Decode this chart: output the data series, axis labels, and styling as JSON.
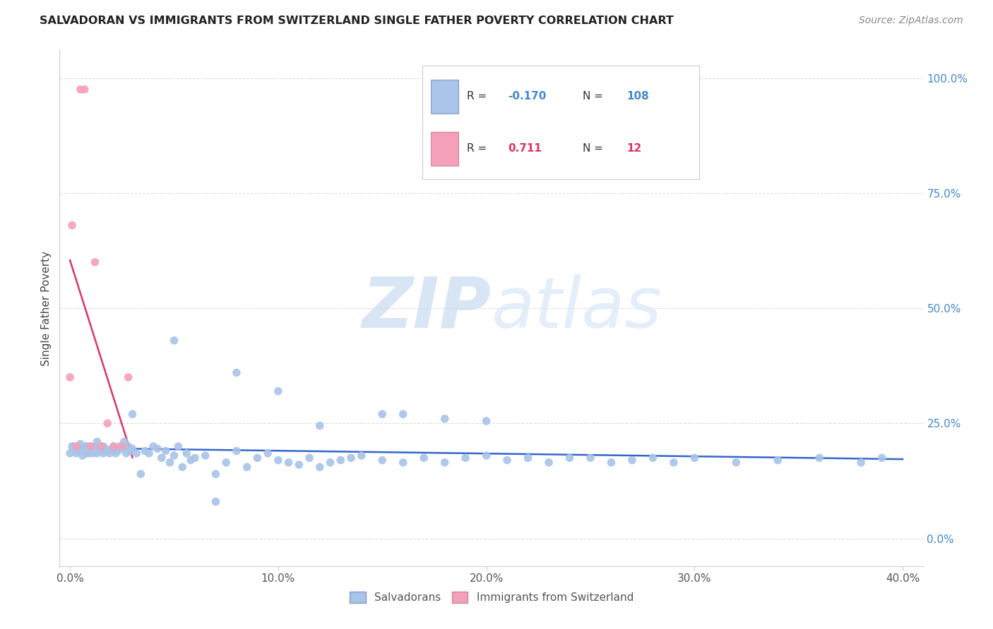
{
  "title": "SALVADORAN VS IMMIGRANTS FROM SWITZERLAND SINGLE FATHER POVERTY CORRELATION CHART",
  "source": "Source: ZipAtlas.com",
  "ylabel": "Single Father Poverty",
  "xlim": [
    -0.005,
    0.41
  ],
  "ylim": [
    -0.06,
    1.06
  ],
  "blue_R": -0.17,
  "blue_N": 108,
  "pink_R": 0.711,
  "pink_N": 12,
  "blue_color": "#a8c4e8",
  "pink_color": "#f4a0b8",
  "blue_line_color": "#3366cc",
  "pink_line_color": "#dd3366",
  "legend_blue_label": "Salvadorans",
  "legend_pink_label": "Immigrants from Switzerland",
  "blue_scatter_x": [
    0.0,
    0.001,
    0.002,
    0.002,
    0.003,
    0.003,
    0.004,
    0.004,
    0.005,
    0.005,
    0.006,
    0.006,
    0.007,
    0.007,
    0.008,
    0.008,
    0.009,
    0.009,
    0.01,
    0.01,
    0.011,
    0.011,
    0.012,
    0.012,
    0.013,
    0.013,
    0.014,
    0.014,
    0.015,
    0.015,
    0.016,
    0.016,
    0.017,
    0.018,
    0.019,
    0.02,
    0.021,
    0.022,
    0.023,
    0.024,
    0.025,
    0.026,
    0.027,
    0.028,
    0.029,
    0.03,
    0.032,
    0.034,
    0.036,
    0.038,
    0.04,
    0.042,
    0.044,
    0.046,
    0.048,
    0.05,
    0.052,
    0.054,
    0.056,
    0.058,
    0.06,
    0.065,
    0.07,
    0.075,
    0.08,
    0.085,
    0.09,
    0.095,
    0.1,
    0.105,
    0.11,
    0.115,
    0.12,
    0.125,
    0.13,
    0.135,
    0.14,
    0.15,
    0.16,
    0.17,
    0.18,
    0.19,
    0.2,
    0.21,
    0.22,
    0.23,
    0.24,
    0.25,
    0.26,
    0.27,
    0.28,
    0.29,
    0.3,
    0.32,
    0.34,
    0.36,
    0.38,
    0.39,
    0.15,
    0.1,
    0.05,
    0.12,
    0.2,
    0.08,
    0.16,
    0.03,
    0.07,
    0.18
  ],
  "blue_scatter_y": [
    0.185,
    0.2,
    0.19,
    0.2,
    0.195,
    0.185,
    0.2,
    0.19,
    0.205,
    0.195,
    0.18,
    0.195,
    0.2,
    0.19,
    0.185,
    0.2,
    0.195,
    0.185,
    0.2,
    0.19,
    0.195,
    0.185,
    0.2,
    0.19,
    0.21,
    0.185,
    0.2,
    0.195,
    0.2,
    0.19,
    0.185,
    0.2,
    0.195,
    0.19,
    0.185,
    0.195,
    0.2,
    0.185,
    0.19,
    0.2,
    0.195,
    0.21,
    0.185,
    0.2,
    0.19,
    0.195,
    0.185,
    0.14,
    0.19,
    0.185,
    0.2,
    0.195,
    0.175,
    0.19,
    0.165,
    0.18,
    0.2,
    0.155,
    0.185,
    0.17,
    0.175,
    0.18,
    0.14,
    0.165,
    0.19,
    0.155,
    0.175,
    0.185,
    0.17,
    0.165,
    0.16,
    0.175,
    0.155,
    0.165,
    0.17,
    0.175,
    0.18,
    0.17,
    0.165,
    0.175,
    0.165,
    0.175,
    0.18,
    0.17,
    0.175,
    0.165,
    0.175,
    0.175,
    0.165,
    0.17,
    0.175,
    0.165,
    0.175,
    0.165,
    0.17,
    0.175,
    0.165,
    0.175,
    0.27,
    0.32,
    0.43,
    0.245,
    0.255,
    0.36,
    0.27,
    0.27,
    0.08,
    0.26
  ],
  "pink_scatter_x": [
    0.0,
    0.001,
    0.003,
    0.005,
    0.007,
    0.01,
    0.012,
    0.015,
    0.018,
    0.021,
    0.025,
    0.028
  ],
  "pink_scatter_y": [
    0.35,
    0.68,
    0.2,
    0.975,
    0.975,
    0.2,
    0.6,
    0.2,
    0.25,
    0.2,
    0.2,
    0.35
  ],
  "pink_line_x0": 0.0,
  "pink_line_x1": 0.03,
  "blue_line_x0": 0.0,
  "blue_line_x1": 0.4
}
